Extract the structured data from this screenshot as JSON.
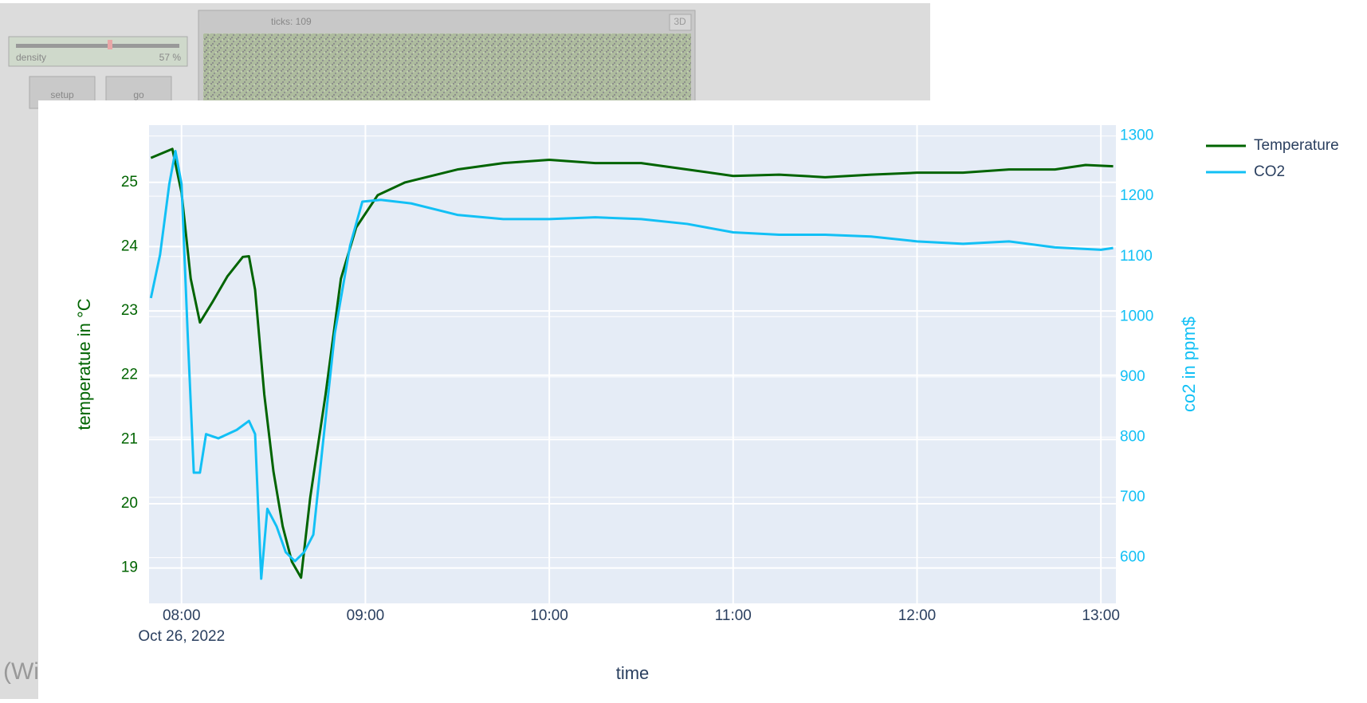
{
  "background": {
    "slider_label": "density",
    "slider_value": "57 %",
    "button_setup": "setup",
    "button_go": "go",
    "view_ticks": "ticks: 109",
    "view_3d": "3D",
    "side_text": "(Wi"
  },
  "chart_data": {
    "type": "line",
    "x_title": "time",
    "y_title": "temperatue in °C",
    "y2_title": "co2 in ppm$",
    "x_date_label": "Oct 26, 2022",
    "xlim": [
      "2022-10-26T07:49:24",
      "2022-10-26T13:04:54"
    ],
    "xticks": [
      {
        "value": "2022-10-26T08:00",
        "label": "08:00"
      },
      {
        "value": "2022-10-26T09:00",
        "label": "09:00"
      },
      {
        "value": "2022-10-26T10:00",
        "label": "10:00"
      },
      {
        "value": "2022-10-26T11:00",
        "label": "11:00"
      },
      {
        "value": "2022-10-26T12:00",
        "label": "12:00"
      },
      {
        "value": "2022-10-26T13:00",
        "label": "13:00"
      }
    ],
    "ylim": [
      18.45,
      25.89
    ],
    "yticks": [
      19,
      20,
      21,
      22,
      23,
      24,
      25
    ],
    "y2lim": [
      524,
      1318
    ],
    "y2ticks": [
      600,
      700,
      800,
      900,
      1000,
      1100,
      1200,
      1300
    ],
    "grid": true,
    "legend": "right",
    "series": [
      {
        "name": "Temperature",
        "color": "#006400",
        "axis": "y",
        "x": [
          "2022-10-26T07:50",
          "2022-10-26T07:57",
          "2022-10-26T08:00",
          "2022-10-26T08:03",
          "2022-10-26T08:06",
          "2022-10-26T08:10",
          "2022-10-26T08:15",
          "2022-10-26T08:20",
          "2022-10-26T08:22",
          "2022-10-26T08:24",
          "2022-10-26T08:27",
          "2022-10-26T08:30",
          "2022-10-26T08:33",
          "2022-10-26T08:36",
          "2022-10-26T08:39",
          "2022-10-26T08:42",
          "2022-10-26T08:47",
          "2022-10-26T08:52",
          "2022-10-26T08:57",
          "2022-10-26T09:04",
          "2022-10-26T09:13",
          "2022-10-26T09:30",
          "2022-10-26T09:45",
          "2022-10-26T10:00",
          "2022-10-26T10:15",
          "2022-10-26T10:30",
          "2022-10-26T10:45",
          "2022-10-26T11:00",
          "2022-10-26T11:15",
          "2022-10-26T11:30",
          "2022-10-26T11:45",
          "2022-10-26T12:00",
          "2022-10-26T12:15",
          "2022-10-26T12:30",
          "2022-10-26T12:45",
          "2022-10-26T12:55",
          "2022-10-26T13:04"
        ],
        "values": [
          25.38,
          25.52,
          24.84,
          23.5,
          22.82,
          23.13,
          23.54,
          23.84,
          23.85,
          23.33,
          21.7,
          20.5,
          19.65,
          19.1,
          18.85,
          20.1,
          21.7,
          23.5,
          24.3,
          24.8,
          25.0,
          25.2,
          25.3,
          25.35,
          25.3,
          25.3,
          25.2,
          25.1,
          25.12,
          25.08,
          25.12,
          25.15,
          25.15,
          25.2,
          25.2,
          25.27,
          25.25
        ]
      },
      {
        "name": "CO2",
        "color": "#12c0f5",
        "axis": "y2",
        "x": [
          "2022-10-26T07:50",
          "2022-10-26T07:53",
          "2022-10-26T07:56",
          "2022-10-26T07:58",
          "2022-10-26T08:00",
          "2022-10-26T08:02",
          "2022-10-26T08:04",
          "2022-10-26T08:06",
          "2022-10-26T08:08",
          "2022-10-26T08:12",
          "2022-10-26T08:18",
          "2022-10-26T08:22",
          "2022-10-26T08:24",
          "2022-10-26T08:26",
          "2022-10-26T08:28",
          "2022-10-26T08:31",
          "2022-10-26T08:34",
          "2022-10-26T08:37",
          "2022-10-26T08:40",
          "2022-10-26T08:43",
          "2022-10-26T08:46",
          "2022-10-26T08:50",
          "2022-10-26T08:55",
          "2022-10-26T08:59",
          "2022-10-26T09:05",
          "2022-10-26T09:15",
          "2022-10-26T09:30",
          "2022-10-26T09:45",
          "2022-10-26T10:00",
          "2022-10-26T10:15",
          "2022-10-26T10:30",
          "2022-10-26T10:45",
          "2022-10-26T11:00",
          "2022-10-26T11:15",
          "2022-10-26T11:30",
          "2022-10-26T11:45",
          "2022-10-26T12:00",
          "2022-10-26T12:15",
          "2022-10-26T12:30",
          "2022-10-26T12:45",
          "2022-10-26T13:00",
          "2022-10-26T13:04"
        ],
        "values": [
          1031,
          1103,
          1220,
          1275,
          1220,
          972,
          741,
          741,
          805,
          798,
          812,
          827,
          805,
          565,
          681,
          652,
          609,
          594,
          609,
          638,
          783,
          972,
          1118,
          1191,
          1194,
          1188,
          1169,
          1162,
          1162,
          1165,
          1162,
          1154,
          1140,
          1136,
          1136,
          1133,
          1125,
          1121,
          1125,
          1115,
          1111,
          1114
        ]
      }
    ]
  }
}
